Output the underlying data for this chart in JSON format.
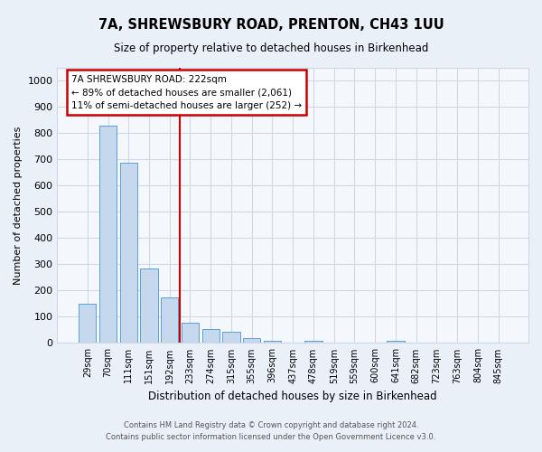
{
  "title": "7A, SHREWSBURY ROAD, PRENTON, CH43 1UU",
  "subtitle": "Size of property relative to detached houses in Birkenhead",
  "xlabel": "Distribution of detached houses by size in Birkenhead",
  "ylabel": "Number of detached properties",
  "bar_labels": [
    "29sqm",
    "70sqm",
    "111sqm",
    "151sqm",
    "192sqm",
    "233sqm",
    "274sqm",
    "315sqm",
    "355sqm",
    "396sqm",
    "437sqm",
    "478sqm",
    "519sqm",
    "559sqm",
    "600sqm",
    "641sqm",
    "682sqm",
    "723sqm",
    "763sqm",
    "804sqm",
    "845sqm"
  ],
  "bar_values": [
    150,
    828,
    689,
    285,
    175,
    78,
    54,
    44,
    20,
    10,
    0,
    10,
    0,
    0,
    0,
    10,
    0,
    0,
    0,
    0,
    0
  ],
  "bar_color": "#c5d8ed",
  "bar_edge_color": "#5a9fd4",
  "vline_x": 4.5,
  "vline_color": "#cc0000",
  "annotation_title": "7A SHREWSBURY ROAD: 222sqm",
  "annotation_line1": "← 89% of detached houses are smaller (2,061)",
  "annotation_line2": "11% of semi-detached houses are larger (252) →",
  "annotation_box_color": "#ffffff",
  "annotation_box_edge": "#cc0000",
  "ylim": [
    0,
    1050
  ],
  "yticks": [
    0,
    100,
    200,
    300,
    400,
    500,
    600,
    700,
    800,
    900,
    1000
  ],
  "grid_color": "#d0d8e8",
  "bg_color": "#eaf0f8",
  "plot_bg_color": "#f4f7fc",
  "footer1": "Contains HM Land Registry data © Crown copyright and database right 2024.",
  "footer2": "Contains public sector information licensed under the Open Government Licence v3.0."
}
